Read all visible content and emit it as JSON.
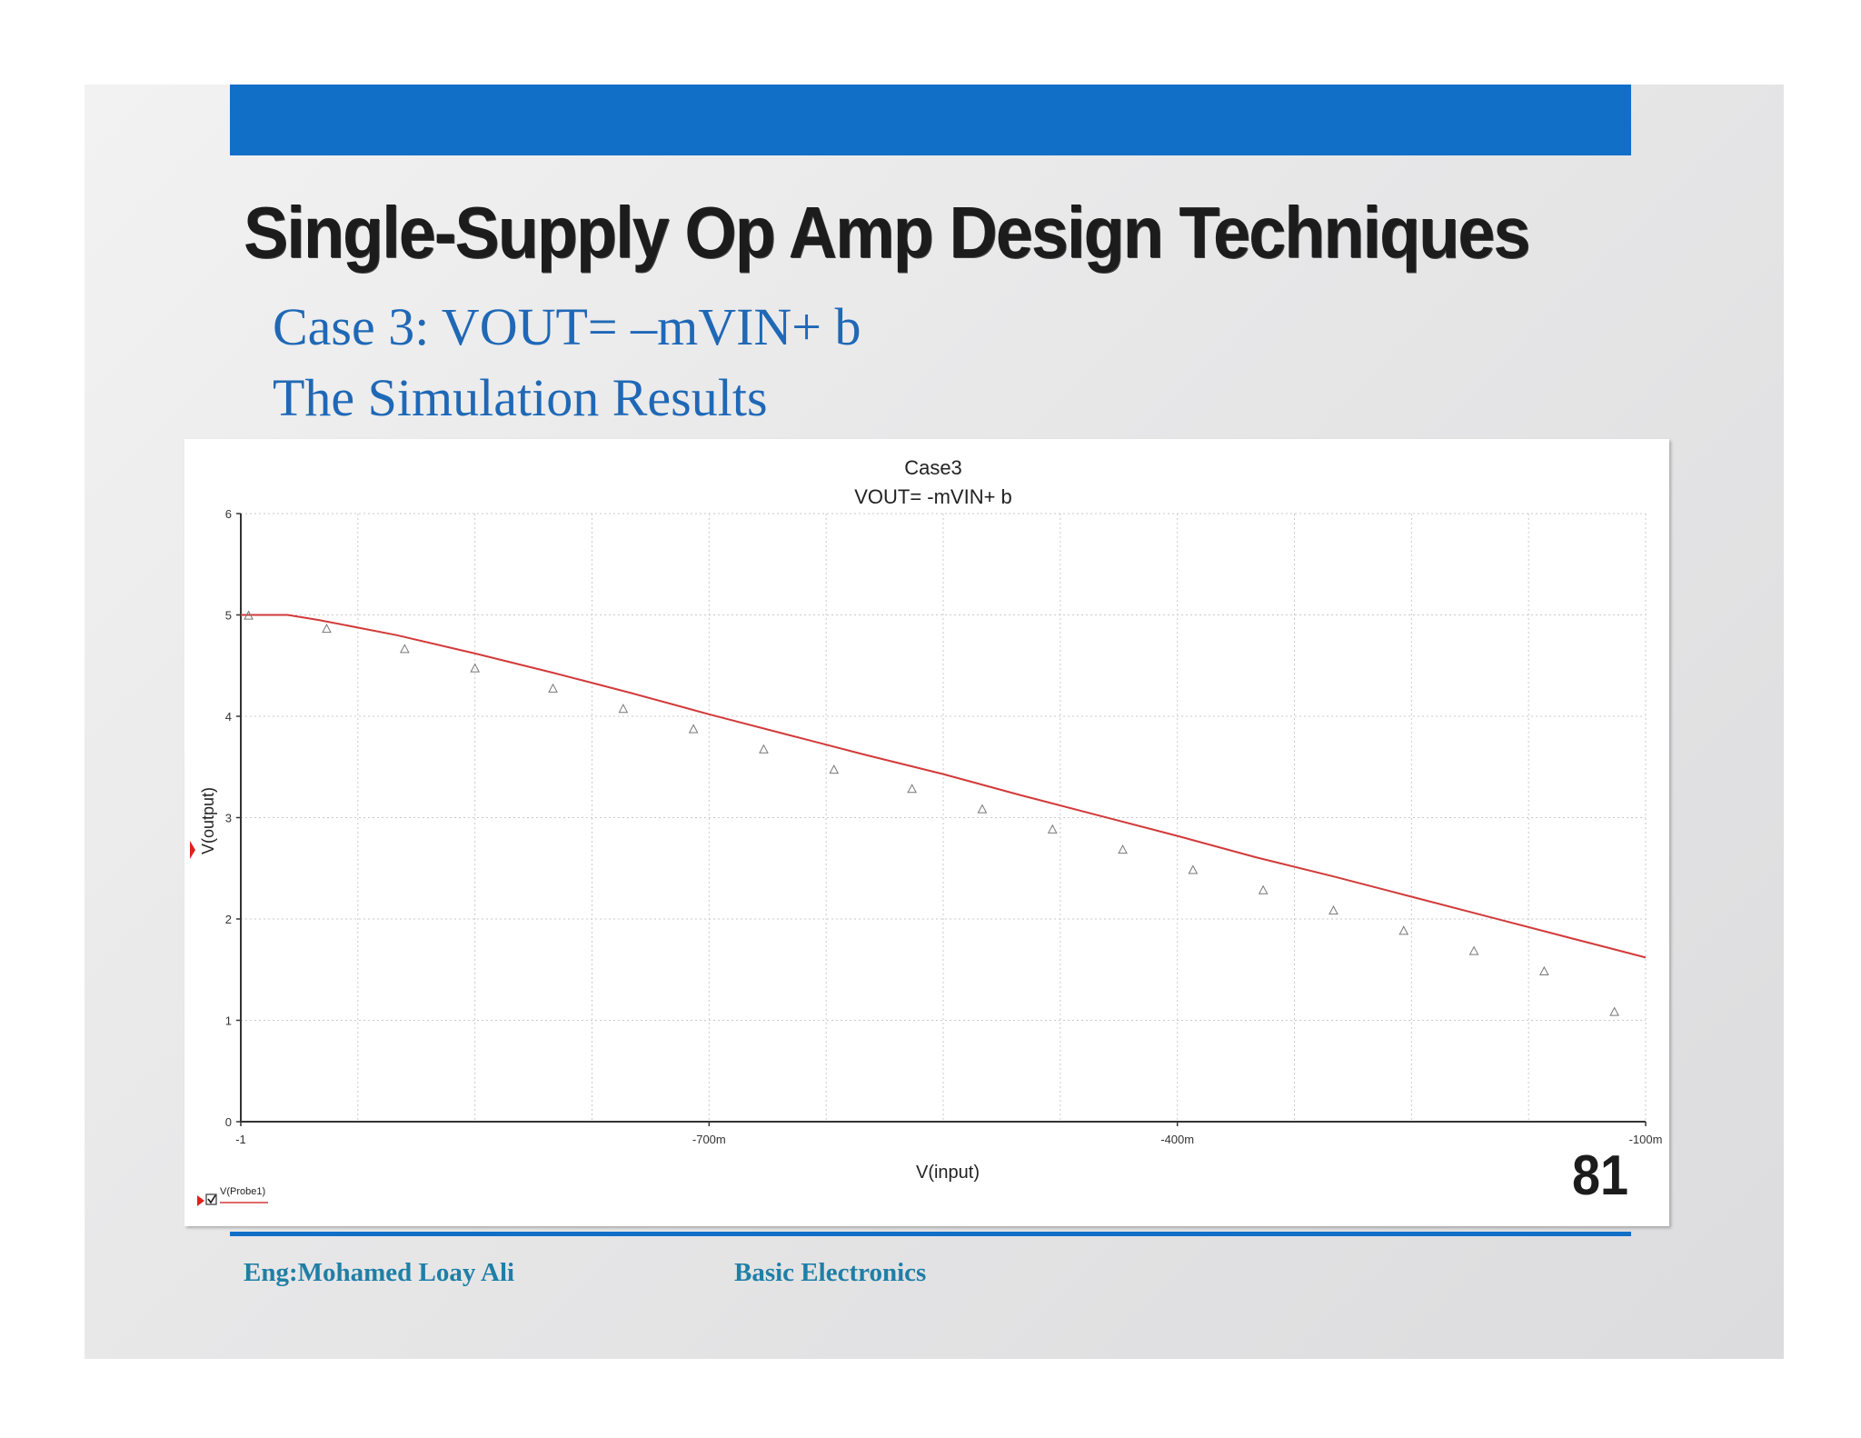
{
  "slide": {
    "title": "Single-Supply Op Amp Design Techniques",
    "subtitle_line1": "Case 3: VOUT= –mVIN+ b",
    "subtitle_line2": "The Simulation Results",
    "page_number": "81",
    "footer_author": "Eng:Mohamed Loay Ali",
    "footer_course": "Basic Electronics",
    "accent_color": "#126fc8"
  },
  "chart_data": {
    "type": "line",
    "title": "Case3",
    "subtitle": "VOUT= -mVIN+ b",
    "xlabel": "V(input)",
    "ylabel": "V(output)",
    "xlim": [
      -1,
      -0.1
    ],
    "ylim": [
      0,
      6
    ],
    "x_ticks": [
      {
        "value": -1,
        "label": "-1"
      },
      {
        "value": -0.7,
        "label": "-700m"
      },
      {
        "value": -0.4,
        "label": "-400m"
      },
      {
        "value": -0.1,
        "label": "-100m"
      }
    ],
    "y_ticks": [
      {
        "value": 0,
        "label": "0"
      },
      {
        "value": 1,
        "label": "1"
      },
      {
        "value": 2,
        "label": "2"
      },
      {
        "value": 3,
        "label": "3"
      },
      {
        "value": 4,
        "label": "4"
      },
      {
        "value": 5,
        "label": "5"
      },
      {
        "value": 6,
        "label": "6"
      }
    ],
    "grid": true,
    "legend": {
      "placement": "bottom-left",
      "label": "V(Probe1)",
      "checkbox_checked": true
    },
    "series": [
      {
        "name": "V(Probe1)",
        "color": "#d23a3a",
        "marker": "triangle",
        "x": [
          -1,
          -0.97,
          -0.95,
          -0.9,
          -0.85,
          -0.8,
          -0.75,
          -0.7,
          -0.65,
          -0.6,
          -0.55,
          -0.5,
          -0.45,
          -0.4,
          -0.35,
          -0.3,
          -0.25,
          -0.2,
          -0.15,
          -0.1
        ],
        "y": [
          5.0,
          5.0,
          4.95,
          4.8,
          4.62,
          4.43,
          4.23,
          4.02,
          3.82,
          3.62,
          3.43,
          3.22,
          3.02,
          2.82,
          2.61,
          2.42,
          2.22,
          2.02,
          1.82,
          1.62
        ]
      }
    ],
    "markers": {
      "x": [
        -0.995,
        -0.945,
        -0.895,
        -0.85,
        -0.8,
        -0.755,
        -0.71,
        -0.665,
        -0.62,
        -0.57,
        -0.525,
        -0.48,
        -0.435,
        -0.39,
        -0.345,
        -0.3,
        -0.255,
        -0.21,
        -0.165,
        -0.12
      ],
      "y": [
        4.99,
        4.86,
        4.66,
        4.47,
        4.27,
        4.07,
        3.87,
        3.67,
        3.47,
        3.28,
        3.08,
        2.88,
        2.68,
        2.48,
        2.28,
        2.08,
        1.88,
        1.68,
        1.48,
        1.08
      ]
    }
  }
}
